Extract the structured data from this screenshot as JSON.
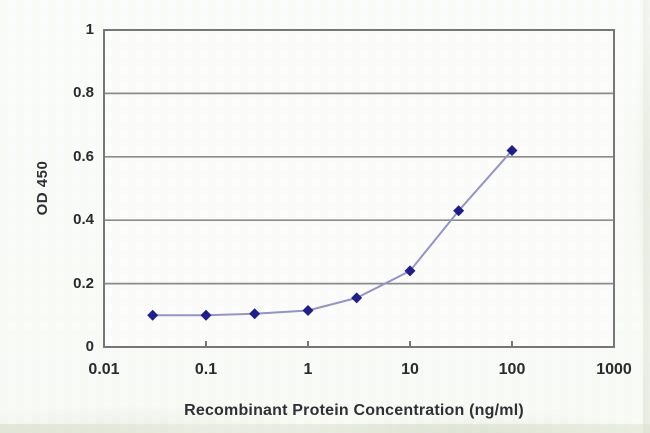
{
  "chart_data": {
    "type": "line",
    "title": "",
    "xlabel": "Recombinant Protein Concentration (ng/ml)",
    "ylabel": "OD 450",
    "xscale": "log",
    "xlim": [
      0.01,
      1000
    ],
    "ylim": [
      0,
      1
    ],
    "x": [
      0.03,
      0.1,
      0.3,
      1,
      3,
      10,
      30,
      100
    ],
    "y": [
      0.1,
      0.1,
      0.105,
      0.115,
      0.155,
      0.24,
      0.43,
      0.62
    ],
    "x_ticks": [
      0.01,
      0.1,
      1,
      10,
      100,
      1000
    ],
    "x_tick_labels": [
      "0.01",
      "0.1",
      "1",
      "10",
      "100",
      "1000"
    ],
    "y_ticks": [
      0,
      0.2,
      0.4,
      0.6,
      0.8,
      1
    ],
    "y_tick_labels": [
      "0",
      "0.2",
      "0.4",
      "0.6",
      "0.8",
      "1"
    ],
    "grid": "horizontal",
    "legend": "none",
    "marker": "diamond",
    "colors": {
      "line": "#9393c8",
      "marker": "#1b1b8e",
      "grid": "#8a8a8a",
      "axis": "#757577",
      "text": "#28282c",
      "plot_bg": "#fdfdfc"
    }
  }
}
